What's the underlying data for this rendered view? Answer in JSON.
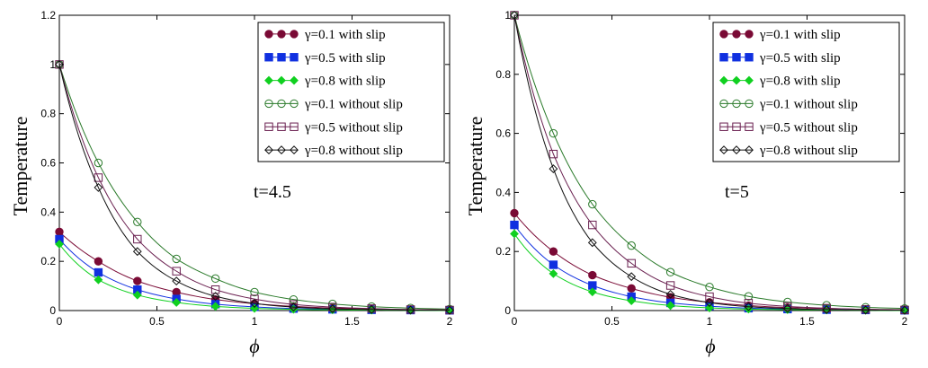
{
  "chart_data": [
    {
      "type": "line",
      "title": "",
      "xlabel": "ϕ",
      "ylabel": "Temperature",
      "annotation": "t=4.5",
      "xlim": [
        0,
        2
      ],
      "ylim": [
        0,
        1.2
      ],
      "xticks": [
        "0",
        "0.5",
        "1",
        "1.5",
        "2"
      ],
      "yticks": [
        "0",
        "0.2",
        "0.4",
        "0.6",
        "0.8",
        "1",
        "1.2"
      ],
      "legend_position": "top-right",
      "series": [
        {
          "name": "γ=0.1 with slip",
          "color": "#7a0a35",
          "marker": "filled-circle",
          "x": [
            0,
            0.2,
            0.4,
            0.6,
            0.8,
            1.0,
            1.2,
            1.4,
            1.6,
            1.8,
            2.0
          ],
          "values": [
            0.32,
            0.2,
            0.12,
            0.075,
            0.045,
            0.028,
            0.017,
            0.01,
            0.007,
            0.004,
            0.003
          ]
        },
        {
          "name": "γ=0.5 with slip",
          "color": "#1030e0",
          "marker": "filled-square",
          "x": [
            0,
            0.2,
            0.4,
            0.6,
            0.8,
            1.0,
            1.2,
            1.4,
            1.6,
            1.8,
            2.0
          ],
          "values": [
            0.29,
            0.155,
            0.085,
            0.047,
            0.026,
            0.015,
            0.008,
            0.005,
            0.003,
            0.002,
            0.001
          ]
        },
        {
          "name": "γ=0.8 with slip",
          "color": "#10d020",
          "marker": "filled-diamond",
          "x": [
            0,
            0.2,
            0.4,
            0.6,
            0.8,
            1.0,
            1.2,
            1.4,
            1.6,
            1.8,
            2.0
          ],
          "values": [
            0.27,
            0.125,
            0.063,
            0.033,
            0.017,
            0.009,
            0.005,
            0.003,
            0.002,
            0.001,
            0.0
          ]
        },
        {
          "name": "γ=0.1 without slip",
          "color": "#2a7a2a",
          "marker": "open-circle",
          "x": [
            0,
            0.2,
            0.4,
            0.6,
            0.8,
            1.0,
            1.2,
            1.4,
            1.6,
            1.8,
            2.0
          ],
          "values": [
            1.0,
            0.6,
            0.36,
            0.21,
            0.13,
            0.075,
            0.045,
            0.027,
            0.016,
            0.01,
            0.006
          ]
        },
        {
          "name": "γ=0.5 without slip",
          "color": "#6a2050",
          "marker": "open-square",
          "x": [
            0,
            0.2,
            0.4,
            0.6,
            0.8,
            1.0,
            1.2,
            1.4,
            1.6,
            1.8,
            2.0
          ],
          "values": [
            1.0,
            0.54,
            0.29,
            0.16,
            0.085,
            0.047,
            0.025,
            0.014,
            0.008,
            0.004,
            0.002
          ]
        },
        {
          "name": "γ=0.8 without slip",
          "color": "#101010",
          "marker": "open-diamond",
          "x": [
            0,
            0.2,
            0.4,
            0.6,
            0.8,
            1.0,
            1.2,
            1.4,
            1.6,
            1.8,
            2.0
          ],
          "values": [
            1.0,
            0.5,
            0.24,
            0.12,
            0.058,
            0.029,
            0.014,
            0.007,
            0.004,
            0.002,
            0.001
          ]
        }
      ]
    },
    {
      "type": "line",
      "title": "",
      "xlabel": "ϕ",
      "ylabel": "Temperature",
      "annotation": "t=5",
      "xlim": [
        0,
        2
      ],
      "ylim": [
        0,
        1
      ],
      "xticks": [
        "0",
        "0.5",
        "1",
        "1.5",
        "2"
      ],
      "yticks": [
        "0",
        "0.2",
        "0.4",
        "0.6",
        "0.8",
        "1"
      ],
      "legend_position": "top-right",
      "series": [
        {
          "name": "γ=0.1 with slip",
          "color": "#7a0a35",
          "marker": "filled-circle",
          "x": [
            0,
            0.2,
            0.4,
            0.6,
            0.8,
            1.0,
            1.2,
            1.4,
            1.6,
            1.8,
            2.0
          ],
          "values": [
            0.33,
            0.2,
            0.12,
            0.075,
            0.045,
            0.028,
            0.017,
            0.01,
            0.007,
            0.004,
            0.003
          ]
        },
        {
          "name": "γ=0.5 with slip",
          "color": "#1030e0",
          "marker": "filled-square",
          "x": [
            0,
            0.2,
            0.4,
            0.6,
            0.8,
            1.0,
            1.2,
            1.4,
            1.6,
            1.8,
            2.0
          ],
          "values": [
            0.29,
            0.155,
            0.085,
            0.047,
            0.026,
            0.015,
            0.008,
            0.005,
            0.003,
            0.002,
            0.001
          ]
        },
        {
          "name": "γ=0.8 with slip",
          "color": "#10d020",
          "marker": "filled-diamond",
          "x": [
            0,
            0.2,
            0.4,
            0.6,
            0.8,
            1.0,
            1.2,
            1.4,
            1.6,
            1.8,
            2.0
          ],
          "values": [
            0.26,
            0.125,
            0.063,
            0.033,
            0.017,
            0.009,
            0.005,
            0.003,
            0.002,
            0.001,
            0.0
          ]
        },
        {
          "name": "γ=0.1 without slip",
          "color": "#2a7a2a",
          "marker": "open-circle",
          "x": [
            0,
            0.2,
            0.4,
            0.6,
            0.8,
            1.0,
            1.2,
            1.4,
            1.6,
            1.8,
            2.0
          ],
          "values": [
            1.0,
            0.6,
            0.36,
            0.22,
            0.13,
            0.08,
            0.048,
            0.029,
            0.018,
            0.011,
            0.007
          ]
        },
        {
          "name": "γ=0.5 without slip",
          "color": "#6a2050",
          "marker": "open-square",
          "x": [
            0,
            0.2,
            0.4,
            0.6,
            0.8,
            1.0,
            1.2,
            1.4,
            1.6,
            1.8,
            2.0
          ],
          "values": [
            1.0,
            0.53,
            0.29,
            0.16,
            0.085,
            0.047,
            0.025,
            0.014,
            0.008,
            0.004,
            0.002
          ]
        },
        {
          "name": "γ=0.8 without slip",
          "color": "#101010",
          "marker": "open-diamond",
          "x": [
            0,
            0.2,
            0.4,
            0.6,
            0.8,
            1.0,
            1.2,
            1.4,
            1.6,
            1.8,
            2.0
          ],
          "values": [
            1.0,
            0.48,
            0.23,
            0.115,
            0.055,
            0.027,
            0.013,
            0.007,
            0.003,
            0.002,
            0.001
          ]
        }
      ]
    }
  ]
}
